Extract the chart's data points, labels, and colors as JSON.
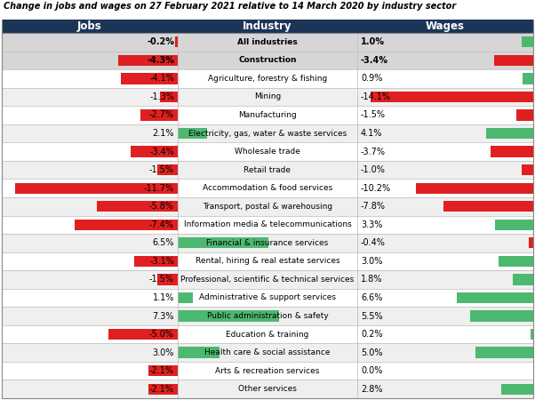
{
  "title": "Change in jobs and wages on 27 February 2021 relative to 14 March 2020 by industry sector",
  "header_bg": "#1c3557",
  "header_text": "white",
  "header_jobs": "Jobs",
  "header_industry": "Industry",
  "header_wages": "Wages",
  "industries": [
    "All industries",
    "Construction",
    "Agriculture, forestry & fishing",
    "Mining",
    "Manufacturing",
    "Electricity, gas, water & waste services",
    "Wholesale trade",
    "Retail trade",
    "Accommodation & food services",
    "Transport, postal & warehousing",
    "Information media & telecommunications",
    "Financial & insurance services",
    "Rental, hiring & real estate services",
    "Professional, scientific & technical services",
    "Administrative & support services",
    "Public administration & safety",
    "Education & training",
    "Health care & social assistance",
    "Arts & recreation services",
    "Other services"
  ],
  "jobs": [
    -0.2,
    -4.3,
    -4.1,
    -1.3,
    -2.7,
    2.1,
    -3.4,
    -1.5,
    -11.7,
    -5.8,
    -7.4,
    6.5,
    -3.1,
    -1.5,
    1.1,
    7.3,
    -5.0,
    3.0,
    -2.1,
    -2.1
  ],
  "wages": [
    1.0,
    -3.4,
    0.9,
    -14.1,
    -1.5,
    4.1,
    -3.7,
    -1.0,
    -10.2,
    -7.8,
    3.3,
    -0.4,
    3.0,
    1.8,
    6.6,
    5.5,
    0.2,
    5.0,
    0.0,
    2.8
  ],
  "bold_rows": [
    0,
    1
  ],
  "color_positive": "#4db870",
  "color_negative": "#e02020",
  "color_row_highlight": "#d6d6d6",
  "color_row_normal": "#ffffff",
  "color_row_alt": "#efefef",
  "color_divider": "#bbbbbb",
  "color_border": "#888888"
}
